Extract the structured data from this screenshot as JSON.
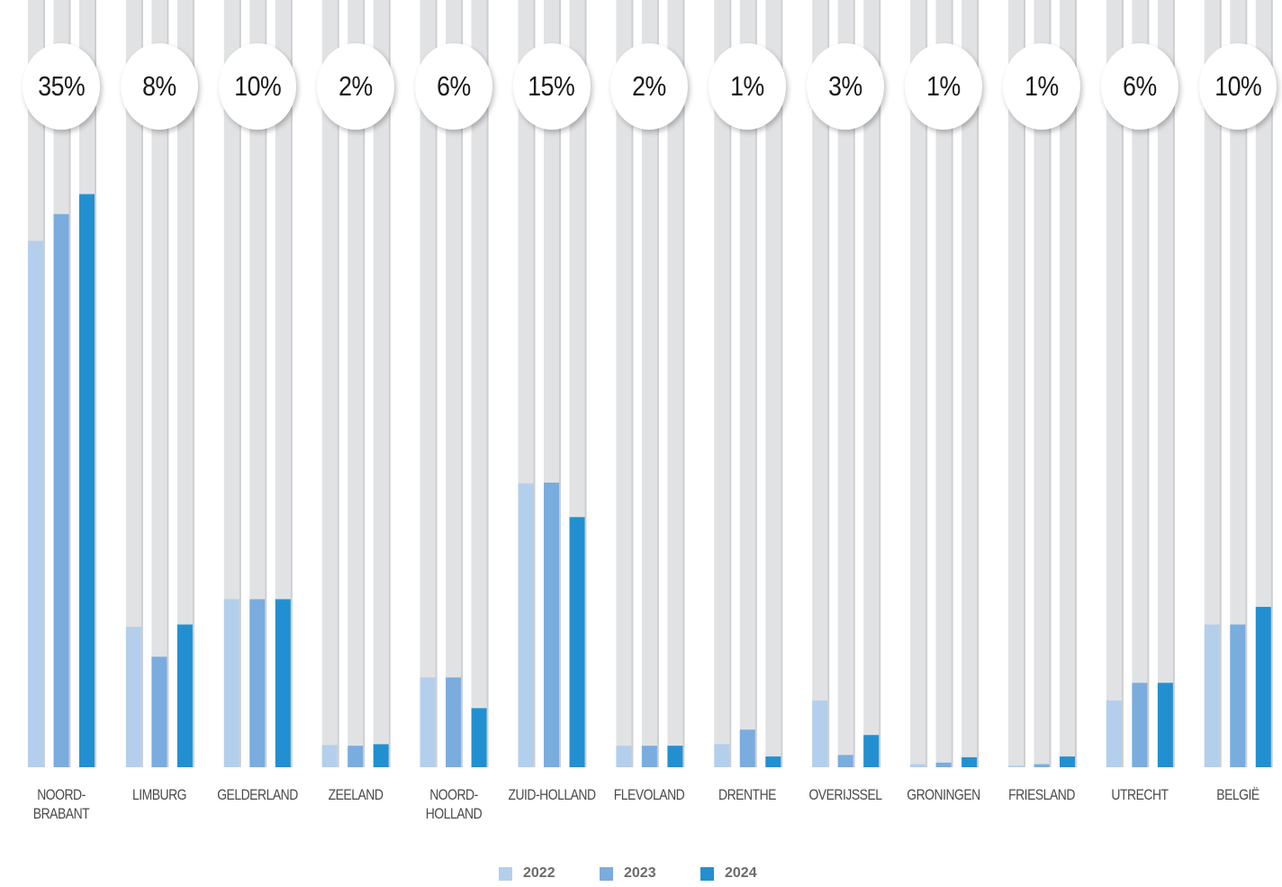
{
  "chart_data": {
    "type": "bar",
    "title": "",
    "xlabel": "",
    "ylabel": "",
    "ylim": [
      0,
      100
    ],
    "grid": false,
    "legend_position": "bottom-center",
    "categories": [
      "NOORD-\nBRABANT",
      "LIMBURG",
      "GELDERLAND",
      "ZEELAND",
      "NOORD-\nHOLLAND",
      "ZUID-HOLLAND",
      "FLEVOLAND",
      "DRENTHE",
      "OVERIJSSEL",
      "GRONINGEN",
      "FRIESLAND",
      "UTRECHT",
      "BELGIË"
    ],
    "share_labels": [
      "35%",
      "8%",
      "10%",
      "2%",
      "6%",
      "15%",
      "2%",
      "1%",
      "3%",
      "1%",
      "1%",
      "6%",
      "10%"
    ],
    "series": [
      {
        "name": "2022",
        "color": "#b3cfec",
        "values": [
          68.6,
          18.3,
          21.9,
          2.9,
          11.7,
          37.0,
          2.8,
          3.0,
          8.7,
          0.4,
          0.2,
          8.7,
          18.6
        ]
      },
      {
        "name": "2023",
        "color": "#7aacde",
        "values": [
          72.1,
          14.4,
          21.9,
          2.8,
          11.7,
          37.1,
          2.8,
          4.9,
          1.6,
          0.6,
          0.4,
          11.0,
          18.6
        ]
      },
      {
        "name": "2024",
        "color": "#2290d0",
        "values": [
          74.7,
          18.6,
          21.9,
          3.0,
          7.7,
          32.6,
          2.8,
          1.4,
          4.2,
          1.3,
          1.4,
          11.0,
          20.9
        ]
      }
    ],
    "track_color": "#e1e2e4"
  }
}
